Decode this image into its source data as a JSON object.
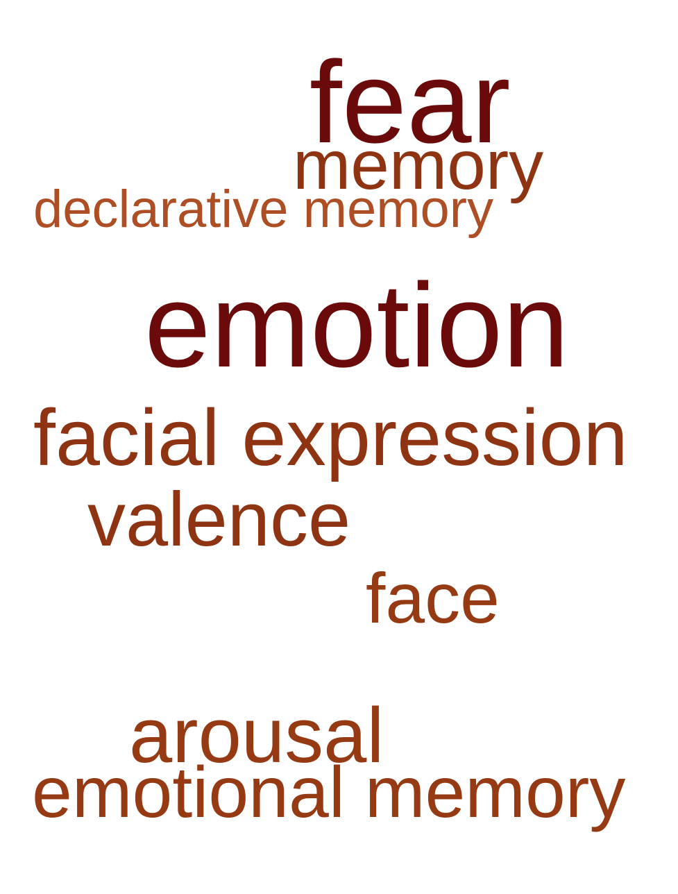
{
  "words": [
    {
      "text": "fear",
      "color": "#6b0a0a"
    },
    {
      "text": "memory",
      "color": "#8f3412"
    },
    {
      "text": "declarative memory",
      "color": "#ad4e24"
    },
    {
      "text": "emotion",
      "color": "#6b0a0a"
    },
    {
      "text": "facial expression",
      "color": "#8f3412"
    },
    {
      "text": "valence",
      "color": "#8f3412"
    },
    {
      "text": "face",
      "color": "#963a14"
    },
    {
      "text": "arousal",
      "color": "#963a14"
    },
    {
      "text": "emotional memory",
      "color": "#963a14"
    }
  ]
}
